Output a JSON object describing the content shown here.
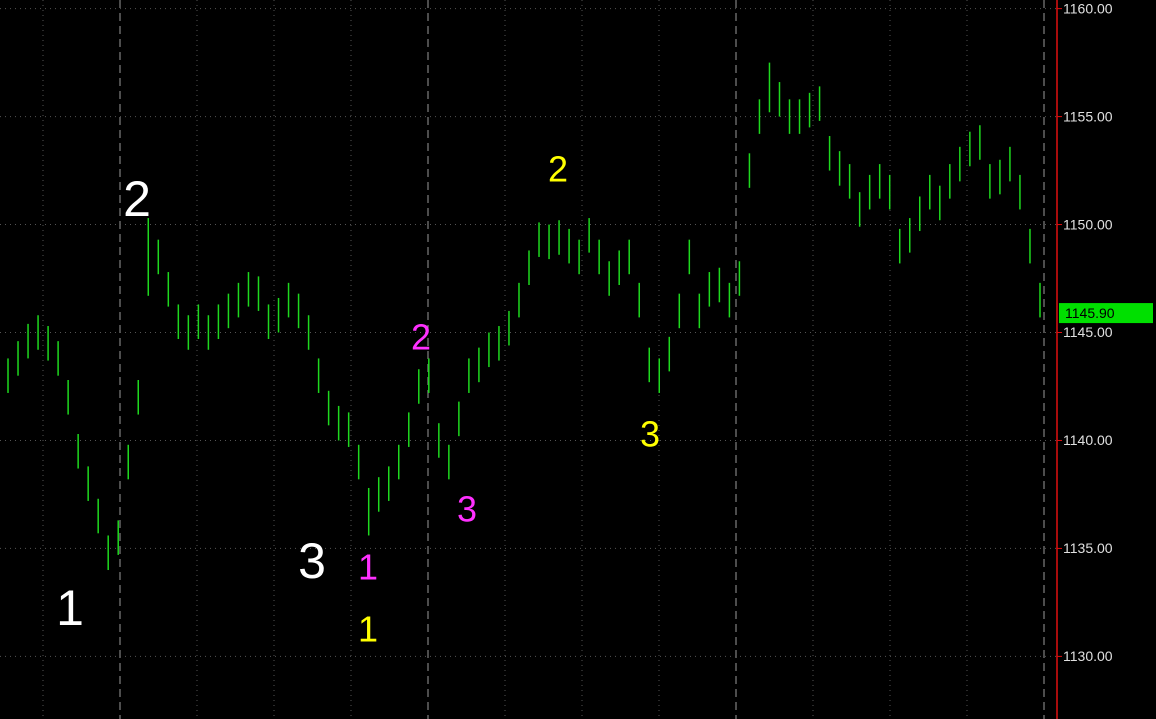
{
  "chart_data": {
    "type": "ohlc",
    "color": "#1ed81e",
    "ylim": [
      1127.1,
      1160.4
    ],
    "yticks": [
      {
        "value": 1130,
        "label": "1130.00"
      },
      {
        "value": 1135,
        "label": "1135.00"
      },
      {
        "value": 1140,
        "label": "1140.00"
      },
      {
        "value": 1145,
        "label": "1145.00"
      },
      {
        "value": 1150,
        "label": "1150.00"
      },
      {
        "value": 1155,
        "label": "1155.00"
      },
      {
        "value": 1160,
        "label": "1160.00"
      }
    ],
    "grid": true,
    "last_price": {
      "value": 1145.9,
      "label": "1145.90"
    },
    "high": [
      1143.8,
      1144.6,
      1145.4,
      1145.8,
      1145.3,
      1144.6,
      1142.8,
      1140.3,
      1138.8,
      1137.3,
      1135.6,
      1136.3,
      1139.8,
      1142.8,
      1150.3,
      1149.3,
      1147.8,
      1146.3,
      1145.8,
      1146.3,
      1145.8,
      1146.3,
      1146.8,
      1147.3,
      1147.8,
      1147.6,
      1146.3,
      1146.6,
      1147.3,
      1146.8,
      1145.8,
      1143.8,
      1142.3,
      1141.6,
      1141.3,
      1139.8,
      1137.8,
      1138.3,
      1138.8,
      1139.8,
      1141.3,
      1143.3,
      1143.8,
      1140.8,
      1139.8,
      1141.8,
      1143.8,
      1144.3,
      1145.0,
      1145.3,
      1146.0,
      1147.3,
      1148.8,
      1150.1,
      1150.0,
      1150.2,
      1149.8,
      1149.3,
      1150.3,
      1149.3,
      1148.3,
      1148.8,
      1149.3,
      1147.3,
      1144.3,
      1143.8,
      1144.8,
      1146.8,
      1149.3,
      1146.8,
      1147.8,
      1148.0,
      1147.3,
      1148.3,
      1153.3,
      1155.8,
      1157.5,
      1156.6,
      1155.8,
      1155.8,
      1156.1,
      1156.4,
      1154.1,
      1153.4,
      1152.8,
      1151.5,
      1152.3,
      1152.8,
      1152.3,
      1149.8,
      1150.3,
      1151.3,
      1152.3,
      1151.8,
      1152.8,
      1153.6,
      1154.3,
      1154.6,
      1152.8,
      1153.0,
      1153.6,
      1152.3,
      1149.8,
      1147.3
    ],
    "low": [
      1142.2,
      1143.0,
      1143.8,
      1144.2,
      1143.7,
      1143.0,
      1141.2,
      1138.7,
      1137.2,
      1135.7,
      1134.0,
      1134.7,
      1138.2,
      1141.2,
      1146.7,
      1147.7,
      1146.2,
      1144.7,
      1144.2,
      1144.7,
      1144.2,
      1144.7,
      1145.2,
      1145.7,
      1146.2,
      1146.0,
      1144.7,
      1145.0,
      1145.7,
      1145.2,
      1144.2,
      1142.2,
      1140.7,
      1140.0,
      1139.7,
      1138.2,
      1135.6,
      1136.7,
      1137.2,
      1138.2,
      1139.7,
      1141.7,
      1142.2,
      1139.2,
      1138.2,
      1140.2,
      1142.2,
      1142.7,
      1143.4,
      1143.7,
      1144.4,
      1145.7,
      1147.2,
      1148.5,
      1148.4,
      1148.6,
      1148.2,
      1147.7,
      1148.7,
      1147.7,
      1146.7,
      1147.2,
      1147.7,
      1145.7,
      1142.7,
      1142.2,
      1143.2,
      1145.2,
      1147.7,
      1145.2,
      1146.2,
      1146.4,
      1145.7,
      1146.7,
      1151.7,
      1154.2,
      1155.2,
      1155.0,
      1154.2,
      1154.2,
      1154.5,
      1154.8,
      1152.5,
      1151.8,
      1151.2,
      1149.9,
      1150.7,
      1151.2,
      1150.7,
      1148.2,
      1148.7,
      1149.7,
      1150.7,
      1150.2,
      1151.2,
      1152.0,
      1152.7,
      1153.0,
      1151.2,
      1151.4,
      1152.0,
      1150.7,
      1148.2,
      1145.7
    ],
    "annotations": [
      {
        "text": "1",
        "color": "#ffffff"
      },
      {
        "text": "2",
        "color": "#ffffff"
      },
      {
        "text": "3",
        "color": "#ffffff"
      },
      {
        "text": "1",
        "color": "#ff30ff"
      },
      {
        "text": "2",
        "color": "#ff30ff"
      },
      {
        "text": "3",
        "color": "#ff30ff"
      },
      {
        "text": "1",
        "color": "#ffff00"
      },
      {
        "text": "2",
        "color": "#ffff00"
      },
      {
        "text": "3",
        "color": "#ffff00"
      }
    ]
  }
}
